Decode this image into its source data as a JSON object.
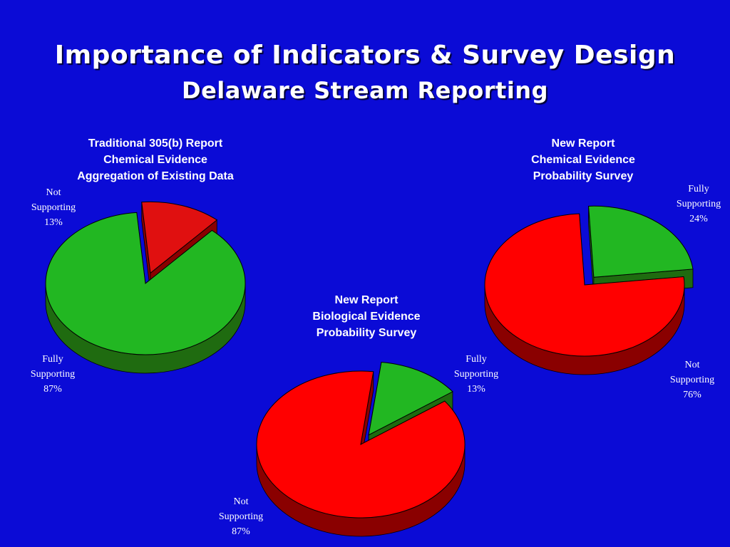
{
  "slide": {
    "title_line1": "Importance of Indicators & Survey Design",
    "title_line2": "Delaware Stream Reporting"
  },
  "colors": {
    "background": "#0b0bd6",
    "fully_supporting": "#22b722",
    "fully_supporting_side": "#1f6b10",
    "not_supporting": "#ff0000",
    "not_supporting_side": "#8a0000",
    "small_red": "#e01010"
  },
  "chart_data": [
    {
      "type": "pie",
      "title": [
        "Traditional 305(b) Report",
        "Chemical Evidence",
        "Aggregation of Existing Data"
      ],
      "slices": [
        {
          "label": "Fully Supporting",
          "value": 87,
          "label_lines": [
            "Fully",
            "Supporting",
            "87%"
          ]
        },
        {
          "label": "Not Supporting",
          "value": 13,
          "label_lines": [
            "Not",
            "Supporting",
            "13%"
          ],
          "exploded": true
        }
      ]
    },
    {
      "type": "pie",
      "title": [
        "New Report",
        "Biological  Evidence",
        "Probability Survey"
      ],
      "slices": [
        {
          "label": "Not Supporting",
          "value": 87,
          "label_lines": [
            "Not",
            "Supporting",
            "87%"
          ]
        },
        {
          "label": "Fully Supporting",
          "value": 13,
          "label_lines": [
            "Fully",
            "Supporting",
            "13%"
          ],
          "exploded": true
        }
      ]
    },
    {
      "type": "pie",
      "title": [
        "New Report",
        "Chemical Evidence",
        "Probability Survey"
      ],
      "slices": [
        {
          "label": "Not Supporting",
          "value": 76,
          "label_lines": [
            "Not",
            "Supporting",
            "76%"
          ]
        },
        {
          "label": "Fully Supporting",
          "value": 24,
          "label_lines": [
            "Fully",
            "Supporting",
            "24%"
          ],
          "exploded": true
        }
      ]
    }
  ]
}
